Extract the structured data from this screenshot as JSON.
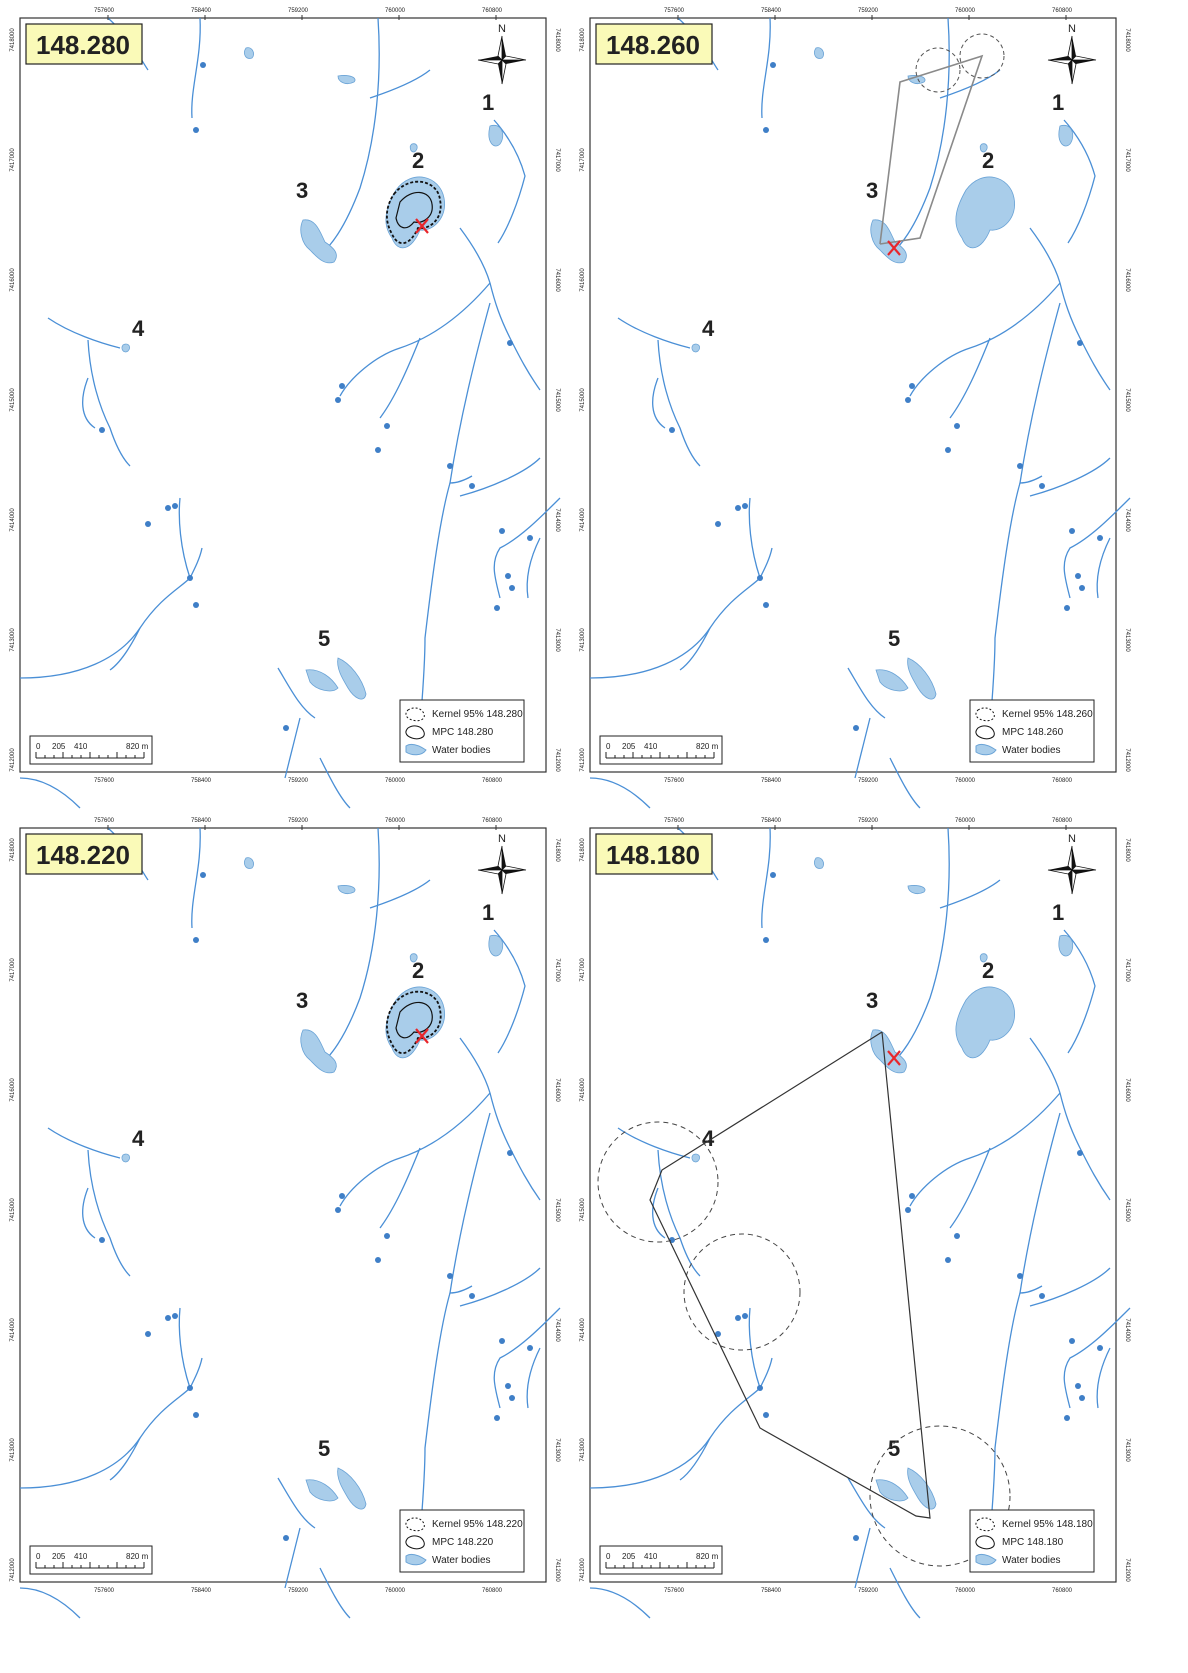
{
  "panels": [
    {
      "freq_label": "148.280",
      "x_ticks_top": [
        "757600",
        "758400",
        "759200",
        "760000",
        "760800"
      ],
      "x_ticks_bottom": [
        "757600",
        "758400",
        "759200",
        "760000",
        "760800"
      ],
      "y_ticks_left": [
        "7418000",
        "7417000",
        "7416000",
        "7415000",
        "7414000",
        "7413000",
        "7412000"
      ],
      "y_ticks_right": [
        "7418000",
        "7417000",
        "7416000",
        "7415000",
        "7414000",
        "7413000",
        "7412000"
      ],
      "lake_labels": [
        "1",
        "2",
        "3",
        "4",
        "5"
      ],
      "north_label": "N",
      "scale": {
        "ticks": [
          "0",
          "205",
          "410",
          "820 m"
        ]
      },
      "legend": [
        "Kernel 95% 148.280",
        "MPC 148.280",
        "Water bodies"
      ],
      "marker": "X",
      "location_lake": "2",
      "kernel_style": "polygon"
    },
    {
      "freq_label": "148.260",
      "x_ticks_top": [
        "757600",
        "758400",
        "759200",
        "760000",
        "760800"
      ],
      "x_ticks_bottom": [
        "757600",
        "758400",
        "759200",
        "760000",
        "760800"
      ],
      "y_ticks_left": [
        "7418000",
        "7417000",
        "7416000",
        "7415000",
        "7414000",
        "7413000",
        "7412000"
      ],
      "y_ticks_right": [
        "7418000",
        "7417000",
        "7416000",
        "7415000",
        "7414000",
        "7413000",
        "7412000"
      ],
      "lake_labels": [
        "1",
        "2",
        "3",
        "4",
        "5"
      ],
      "north_label": "N",
      "scale": {
        "ticks": [
          "0",
          "205",
          "410",
          "820 m"
        ]
      },
      "legend": [
        "Kernel 95% 148.260",
        "MPC 148.260",
        "Water bodies"
      ],
      "marker": "X",
      "location_lake": "3",
      "kernel_style": "circles"
    },
    {
      "freq_label": "148.220",
      "x_ticks_top": [
        "757600",
        "758400",
        "759200",
        "760000",
        "760800"
      ],
      "x_ticks_bottom": [
        "757600",
        "758400",
        "759200",
        "760000",
        "760800"
      ],
      "y_ticks_left": [
        "7418000",
        "7417000",
        "7416000",
        "7415000",
        "7414000",
        "7413000",
        "7412000"
      ],
      "y_ticks_right": [
        "7418000",
        "7417000",
        "7416000",
        "7415000",
        "7414000",
        "7413000",
        "7412000"
      ],
      "lake_labels": [
        "1",
        "2",
        "3",
        "4",
        "5"
      ],
      "north_label": "N",
      "scale": {
        "ticks": [
          "0",
          "205",
          "410",
          "820 m"
        ]
      },
      "legend": [
        "Kernel 95% 148.220",
        "MPC 148.220",
        "Water bodies"
      ],
      "marker": "X",
      "location_lake": "2",
      "kernel_style": "polygon"
    },
    {
      "freq_label": "148.180",
      "x_ticks_top": [
        "757600",
        "758400",
        "759200",
        "760000",
        "760800"
      ],
      "x_ticks_bottom": [
        "757600",
        "758400",
        "759200",
        "760000",
        "760800"
      ],
      "y_ticks_left": [
        "7418000",
        "7417000",
        "7416000",
        "7415000",
        "7414000",
        "7413000",
        "7412000"
      ],
      "y_ticks_right": [
        "7418000",
        "7417000",
        "7416000",
        "7415000",
        "7414000",
        "7413000",
        "7412000"
      ],
      "lake_labels": [
        "1",
        "2",
        "3",
        "4",
        "5"
      ],
      "north_label": "N",
      "scale": {
        "ticks": [
          "0",
          "205",
          "410",
          "820 m"
        ]
      },
      "legend": [
        "Kernel 95% 148.180",
        "MPC 148.180",
        "Water bodies"
      ],
      "marker": "X",
      "location_lake": "3",
      "kernel_style": "circles"
    }
  ],
  "colors": {
    "water": "#a9cdea",
    "water_stroke": "#6aa3d6",
    "stream": "#4a8fd6",
    "pond_dot": "#3f7fc7",
    "marker": "#e8262b",
    "label_box": "#fafab8",
    "border": "#333333",
    "mpc": "#8a8a8a"
  },
  "icons": {
    "compass": "north-arrow-icon",
    "marker": "x-marker-icon"
  }
}
